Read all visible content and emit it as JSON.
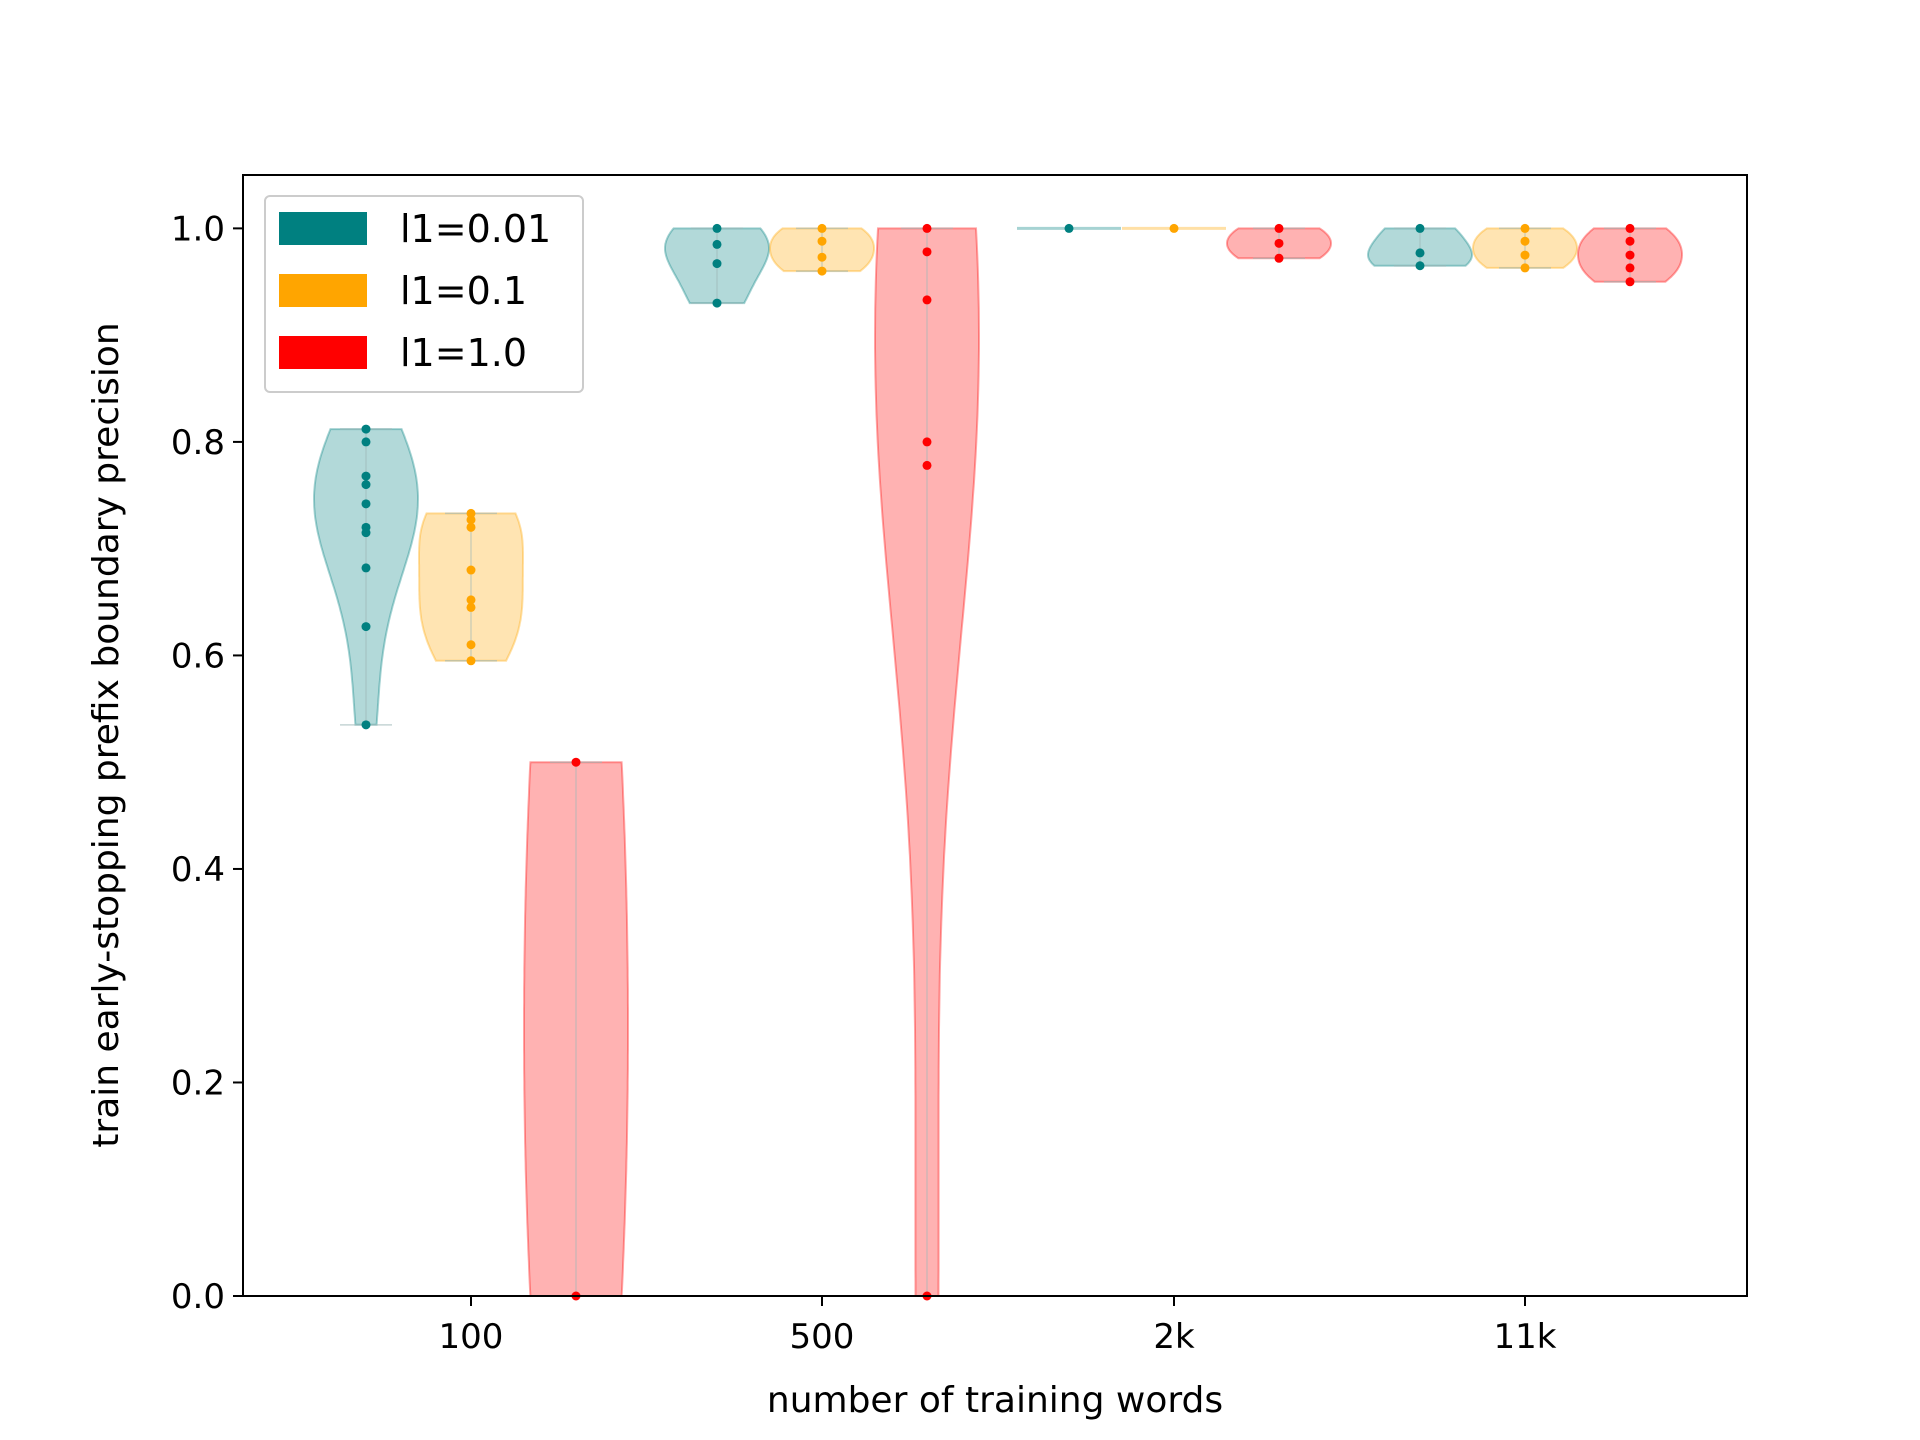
{
  "chart_data": {
    "type": "violin",
    "xlabel": "number of training words",
    "ylabel": "train early-stopping prefix boundary precision",
    "categories": [
      "100",
      "500",
      "2k",
      "11k"
    ],
    "ylim": [
      0,
      1.05
    ],
    "yticks": [
      "0.0",
      "0.2",
      "0.4",
      "0.6",
      "0.8",
      "1.0"
    ],
    "legend_position": "top-left",
    "colors": {
      "l1=0.01": "#008080",
      "l1=0.1": "#FFA500",
      "l1=1.0": "#FF0000"
    },
    "series": [
      {
        "name": "l1=0.01",
        "values": {
          "100": [
            0.535,
            0.627,
            0.682,
            0.715,
            0.72,
            0.742,
            0.76,
            0.768,
            0.8,
            0.812
          ],
          "500": [
            0.93,
            0.967,
            0.985,
            1.0
          ],
          "2k": [
            1.0
          ],
          "11k": [
            0.965,
            0.977,
            1.0
          ]
        }
      },
      {
        "name": "l1=0.1",
        "values": {
          "100": [
            0.595,
            0.61,
            0.645,
            0.652,
            0.68,
            0.72,
            0.727,
            0.733
          ],
          "500": [
            0.96,
            0.973,
            0.988,
            1.0
          ],
          "2k": [
            1.0
          ],
          "11k": [
            0.963,
            0.975,
            0.988,
            1.0
          ]
        }
      },
      {
        "name": "l1=1.0",
        "values": {
          "100": [
            0.0,
            0.5
          ],
          "500": [
            0.0,
            0.778,
            0.8,
            0.933,
            0.978,
            1.0
          ],
          "2k": [
            0.972,
            0.986,
            1.0
          ],
          "11k": [
            0.95,
            0.963,
            0.975,
            0.988,
            1.0
          ]
        }
      }
    ]
  }
}
